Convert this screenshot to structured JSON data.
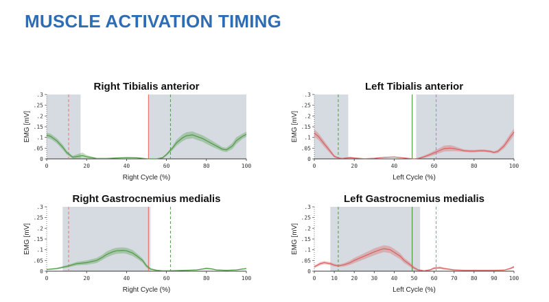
{
  "page": {
    "title": "MUSCLE ACTIVATION TIMING"
  },
  "chart_data": [
    {
      "type": "line",
      "title": "Right Tibialis anterior",
      "xlabel": "Right Cycle (%)",
      "ylabel": "EMG [mV]",
      "xlim": [
        0,
        100
      ],
      "ylim": [
        0,
        0.3
      ],
      "xticks": [
        "0",
        "20",
        "40",
        "60",
        "80",
        "100"
      ],
      "yticks": [
        ".3",
        ".25",
        ".2",
        ".15",
        ".1",
        ".05",
        "0"
      ],
      "color": "#4e9a45",
      "activation_intervals": [
        [
          0,
          17
        ],
        [
          51,
          100
        ]
      ],
      "solid_line_x": 51,
      "solid_line_color": "#e8766a",
      "dashed_lines": [
        {
          "x": 11,
          "color": "#e8766a"
        },
        {
          "x": 62,
          "color": "#4e9a45"
        }
      ],
      "series": [
        {
          "x": [
            0,
            2,
            5,
            8,
            10,
            13,
            16,
            18,
            20,
            25,
            30,
            35,
            40,
            45,
            50,
            52,
            55,
            58,
            60,
            63,
            65,
            68,
            70,
            73,
            75,
            78,
            80,
            83,
            85,
            88,
            90,
            93,
            95,
            98,
            100
          ],
          "values": [
            0.11,
            0.105,
            0.085,
            0.055,
            0.03,
            0.008,
            0.012,
            0.015,
            0.01,
            0.002,
            0.002,
            0.004,
            0.006,
            0.005,
            0.001,
            0.0,
            0.0,
            0.005,
            0.02,
            0.05,
            0.075,
            0.098,
            0.108,
            0.112,
            0.105,
            0.095,
            0.085,
            0.07,
            0.06,
            0.045,
            0.042,
            0.06,
            0.085,
            0.105,
            0.115
          ],
          "spread": [
            0.012,
            0.012,
            0.012,
            0.012,
            0.01,
            0.006,
            0.012,
            0.014,
            0.008,
            0.002,
            0.002,
            0.002,
            0.002,
            0.002,
            0.002,
            0.002,
            0.002,
            0.004,
            0.006,
            0.01,
            0.014,
            0.016,
            0.016,
            0.016,
            0.016,
            0.015,
            0.015,
            0.014,
            0.012,
            0.01,
            0.01,
            0.014,
            0.016,
            0.012,
            0.012
          ]
        }
      ]
    },
    {
      "type": "line",
      "title": "Left Tibialis anterior",
      "xlabel": "Left Cycle (%)",
      "ylabel": "EMG [mV]",
      "xlim": [
        0,
        100
      ],
      "ylim": [
        0,
        0.3
      ],
      "xticks": [
        "0",
        "20",
        "40",
        "60",
        "80",
        "100"
      ],
      "yticks": [
        ".3",
        ".25",
        ".2",
        ".15",
        ".1",
        ".05",
        "0"
      ],
      "color": "#d95f5f",
      "activation_intervals": [
        [
          0,
          17
        ],
        [
          51,
          100
        ]
      ],
      "solid_line_x": 49,
      "solid_line_color": "#4e9a45",
      "dashed_lines": [
        {
          "x": 12,
          "color": "#4e9a45"
        },
        {
          "x": 61,
          "color": "#e8766a"
        }
      ],
      "series": [
        {
          "x": [
            0,
            2,
            5,
            8,
            10,
            12,
            14,
            16,
            18,
            20,
            25,
            30,
            35,
            40,
            45,
            50,
            52,
            55,
            58,
            60,
            63,
            65,
            68,
            70,
            73,
            75,
            78,
            80,
            83,
            85,
            88,
            90,
            92,
            95,
            98,
            100
          ],
          "values": [
            0.12,
            0.105,
            0.07,
            0.035,
            0.012,
            0.004,
            0.002,
            0.004,
            0.006,
            0.004,
            0.001,
            0.003,
            0.007,
            0.009,
            0.004,
            0.0,
            0.002,
            0.01,
            0.02,
            0.028,
            0.04,
            0.048,
            0.05,
            0.048,
            0.042,
            0.038,
            0.036,
            0.036,
            0.038,
            0.038,
            0.035,
            0.03,
            0.035,
            0.06,
            0.1,
            0.125
          ],
          "spread": [
            0.018,
            0.016,
            0.014,
            0.01,
            0.006,
            0.003,
            0.002,
            0.003,
            0.004,
            0.003,
            0.001,
            0.001,
            0.002,
            0.002,
            0.002,
            0.002,
            0.003,
            0.006,
            0.008,
            0.01,
            0.012,
            0.014,
            0.014,
            0.012,
            0.008,
            0.006,
            0.006,
            0.006,
            0.006,
            0.006,
            0.006,
            0.006,
            0.008,
            0.012,
            0.016,
            0.016
          ]
        }
      ]
    },
    {
      "type": "line",
      "title": "Right Gastrocnemius medialis",
      "xlabel": "Right Cycle (%)",
      "ylabel": "EMG [mV]",
      "xlim": [
        0,
        100
      ],
      "ylim": [
        0,
        0.3
      ],
      "xticks": [
        "0",
        "20",
        "40",
        "60",
        "80",
        "100"
      ],
      "yticks": [
        ".3",
        ".25",
        ".2",
        ".15",
        ".1",
        ".05",
        "0"
      ],
      "color": "#4e9a45",
      "activation_intervals": [
        [
          8,
          52
        ]
      ],
      "solid_line_x": 51,
      "solid_line_color": "#e8766a",
      "dashed_lines": [
        {
          "x": 11,
          "color": "#e8766a"
        },
        {
          "x": 62,
          "color": "#4e9a45"
        }
      ],
      "series": [
        {
          "x": [
            0,
            5,
            10,
            15,
            20,
            25,
            28,
            30,
            33,
            35,
            38,
            40,
            43,
            45,
            48,
            50,
            52,
            55,
            58,
            60,
            65,
            70,
            75,
            78,
            80,
            83,
            85,
            90,
            95,
            98,
            100
          ],
          "values": [
            0.008,
            0.012,
            0.022,
            0.035,
            0.04,
            0.05,
            0.065,
            0.078,
            0.09,
            0.095,
            0.097,
            0.095,
            0.085,
            0.072,
            0.05,
            0.025,
            0.01,
            0.004,
            0.002,
            0.002,
            0.003,
            0.004,
            0.006,
            0.01,
            0.013,
            0.01,
            0.006,
            0.004,
            0.006,
            0.01,
            0.012
          ],
          "spread": [
            0.002,
            0.004,
            0.006,
            0.008,
            0.01,
            0.012,
            0.012,
            0.014,
            0.014,
            0.014,
            0.014,
            0.014,
            0.014,
            0.012,
            0.01,
            0.008,
            0.005,
            0.003,
            0.002,
            0.002,
            0.002,
            0.002,
            0.002,
            0.003,
            0.004,
            0.003,
            0.002,
            0.002,
            0.002,
            0.003,
            0.003
          ]
        }
      ]
    },
    {
      "type": "line",
      "title": "Left Gastrocnemius medialis",
      "xlabel": "Left Cycle (%)",
      "ylabel": "EMG [mV]",
      "xlim": [
        0,
        100
      ],
      "ylim": [
        0,
        0.3
      ],
      "xticks": [
        "0",
        "10",
        "20",
        "30",
        "40",
        "50",
        "60",
        "70",
        "80",
        "90",
        "100"
      ],
      "yticks": [
        ".3",
        ".25",
        ".2",
        ".15",
        ".1",
        ".05",
        "0"
      ],
      "color": "#d95f5f",
      "activation_intervals": [
        [
          8,
          53
        ]
      ],
      "solid_line_x": 49,
      "solid_line_color": "#4e9a45",
      "dashed_lines": [
        {
          "x": 12,
          "color": "#4e9a45"
        },
        {
          "x": 61,
          "color": "#e8766a"
        }
      ],
      "series": [
        {
          "x": [
            0,
            3,
            5,
            8,
            10,
            12,
            15,
            18,
            20,
            25,
            30,
            33,
            35,
            38,
            40,
            43,
            45,
            48,
            50,
            52,
            55,
            58,
            60,
            63,
            65,
            70,
            75,
            80,
            85,
            90,
            95,
            98,
            100
          ],
          "values": [
            0.02,
            0.035,
            0.04,
            0.035,
            0.028,
            0.025,
            0.03,
            0.04,
            0.05,
            0.07,
            0.09,
            0.1,
            0.105,
            0.1,
            0.088,
            0.07,
            0.05,
            0.03,
            0.015,
            0.006,
            0.002,
            0.006,
            0.014,
            0.016,
            0.012,
            0.006,
            0.004,
            0.004,
            0.004,
            0.004,
            0.005,
            0.012,
            0.02
          ],
          "spread": [
            0.006,
            0.008,
            0.008,
            0.007,
            0.006,
            0.006,
            0.008,
            0.01,
            0.012,
            0.014,
            0.016,
            0.016,
            0.016,
            0.016,
            0.016,
            0.014,
            0.012,
            0.01,
            0.007,
            0.004,
            0.002,
            0.004,
            0.005,
            0.006,
            0.005,
            0.003,
            0.002,
            0.002,
            0.002,
            0.002,
            0.002,
            0.004,
            0.006
          ]
        }
      ]
    }
  ]
}
